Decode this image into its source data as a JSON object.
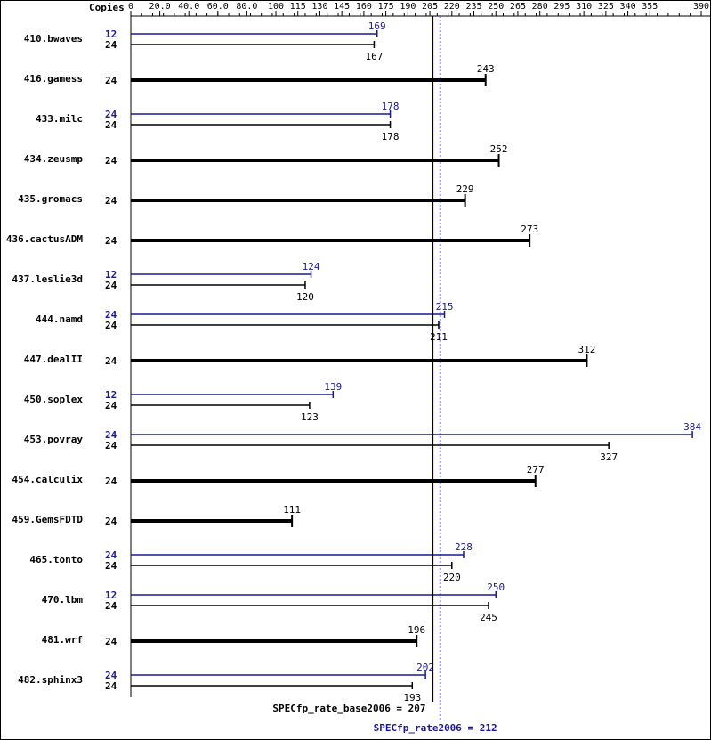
{
  "chart_data": {
    "type": "bar",
    "copies_header": "Copies",
    "axis_ticks": [
      "0",
      "20.0",
      "40.0",
      "60.0",
      "80.0",
      "100",
      "115",
      "130",
      "145",
      "160",
      "175",
      "190",
      "205",
      "220",
      "235",
      "250",
      "265",
      "280",
      "295",
      "310",
      "325",
      "340",
      "355",
      "390"
    ],
    "xlim": [
      0,
      390
    ],
    "colors": {
      "base": "#000000",
      "peak": "#191996"
    },
    "benchmarks": [
      {
        "name": "410.bwaves",
        "peak": {
          "copies": "12",
          "value": 169
        },
        "base": {
          "copies": "24",
          "value": 167
        }
      },
      {
        "name": "416.gamess",
        "base": {
          "copies": "24",
          "value": 243
        },
        "same": true
      },
      {
        "name": "433.milc",
        "peak": {
          "copies": "24",
          "value": 178
        },
        "base": {
          "copies": "24",
          "value": 178
        }
      },
      {
        "name": "434.zeusmp",
        "base": {
          "copies": "24",
          "value": 252
        },
        "same": true
      },
      {
        "name": "435.gromacs",
        "base": {
          "copies": "24",
          "value": 229
        },
        "same": true
      },
      {
        "name": "436.cactusADM",
        "base": {
          "copies": "24",
          "value": 273
        },
        "same": true
      },
      {
        "name": "437.leslie3d",
        "peak": {
          "copies": "12",
          "value": 124
        },
        "base": {
          "copies": "24",
          "value": 120
        }
      },
      {
        "name": "444.namd",
        "peak": {
          "copies": "24",
          "value": 215
        },
        "base": {
          "copies": "24",
          "value": 211
        }
      },
      {
        "name": "447.dealII",
        "base": {
          "copies": "24",
          "value": 312
        },
        "same": true
      },
      {
        "name": "450.soplex",
        "peak": {
          "copies": "12",
          "value": 139
        },
        "base": {
          "copies": "24",
          "value": 123
        }
      },
      {
        "name": "453.povray",
        "peak": {
          "copies": "24",
          "value": 384
        },
        "base": {
          "copies": "24",
          "value": 327
        }
      },
      {
        "name": "454.calculix",
        "base": {
          "copies": "24",
          "value": 277
        },
        "same": true
      },
      {
        "name": "459.GemsFDTD",
        "base": {
          "copies": "24",
          "value": 111
        },
        "same": true
      },
      {
        "name": "465.tonto",
        "peak": {
          "copies": "24",
          "value": 228
        },
        "base": {
          "copies": "24",
          "value": 220
        }
      },
      {
        "name": "470.lbm",
        "peak": {
          "copies": "12",
          "value": 250
        },
        "base": {
          "copies": "24",
          "value": 245
        }
      },
      {
        "name": "481.wrf",
        "base": {
          "copies": "24",
          "value": 196
        },
        "same": true
      },
      {
        "name": "482.sphinx3",
        "peak": {
          "copies": "24",
          "value": 202
        },
        "base": {
          "copies": "24",
          "value": 193
        }
      }
    ],
    "reference_lines": {
      "base": {
        "label": "SPECfp_rate_base2006 = 207",
        "value": 207
      },
      "peak": {
        "label": "SPECfp_rate2006 = 212",
        "value": 212
      }
    }
  }
}
